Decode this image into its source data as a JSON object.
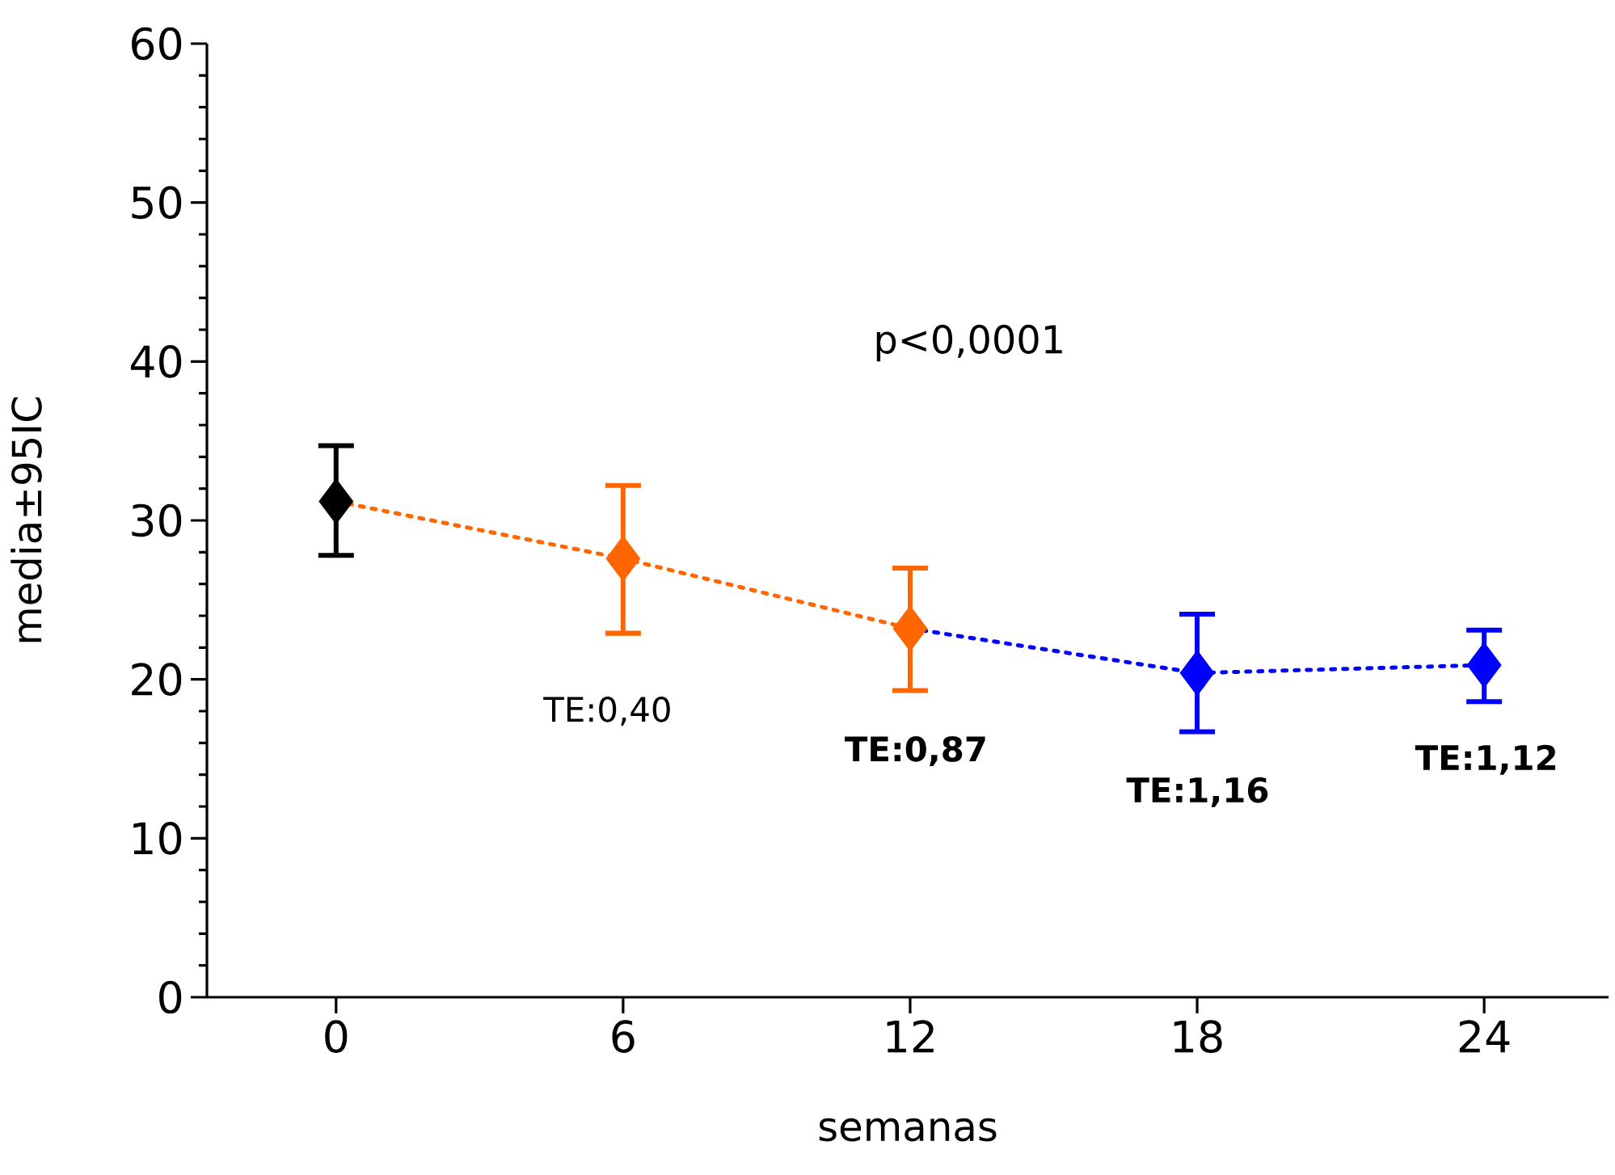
{
  "chart_data": {
    "type": "line",
    "xlabel": "semanas",
    "ylabel": "media±95IC",
    "xlim": [
      -2.7,
      26.6
    ],
    "ylim": [
      0,
      60
    ],
    "xticks": [
      0,
      6,
      12,
      18,
      24
    ],
    "yticks": [
      0,
      10,
      20,
      30,
      40,
      50,
      60
    ],
    "grid": false,
    "series": [
      {
        "color": "#ff6600",
        "line_style": "dotted",
        "marker": "none",
        "x": [
          0,
          6,
          12
        ],
        "values": [
          31.2,
          27.6,
          23.2
        ]
      },
      {
        "color": "#0000ff",
        "line_style": "dotted",
        "marker": "none",
        "x": [
          12,
          18,
          24
        ],
        "values": [
          23.2,
          20.4,
          20.9
        ]
      },
      {
        "type": "scatter",
        "marker": "diamond",
        "colors": [
          "#000000",
          "#ff6600",
          "#ff6600",
          "#0000ff",
          "#0000ff"
        ],
        "x": [
          0,
          6,
          12,
          18,
          24
        ],
        "values": [
          31.2,
          27.6,
          23.2,
          20.4,
          20.9
        ],
        "errors": [
          [
            27.8,
            34.7
          ],
          [
            22.9,
            32.2
          ],
          [
            19.3,
            27.0
          ],
          [
            16.7,
            24.1
          ],
          [
            18.6,
            23.1
          ]
        ]
      }
    ],
    "annotations": [
      "p<0,0001",
      "TE:0,40",
      "**TE:0,87**",
      "**TE:1,16**",
      "**TE:1,12**"
    ]
  }
}
